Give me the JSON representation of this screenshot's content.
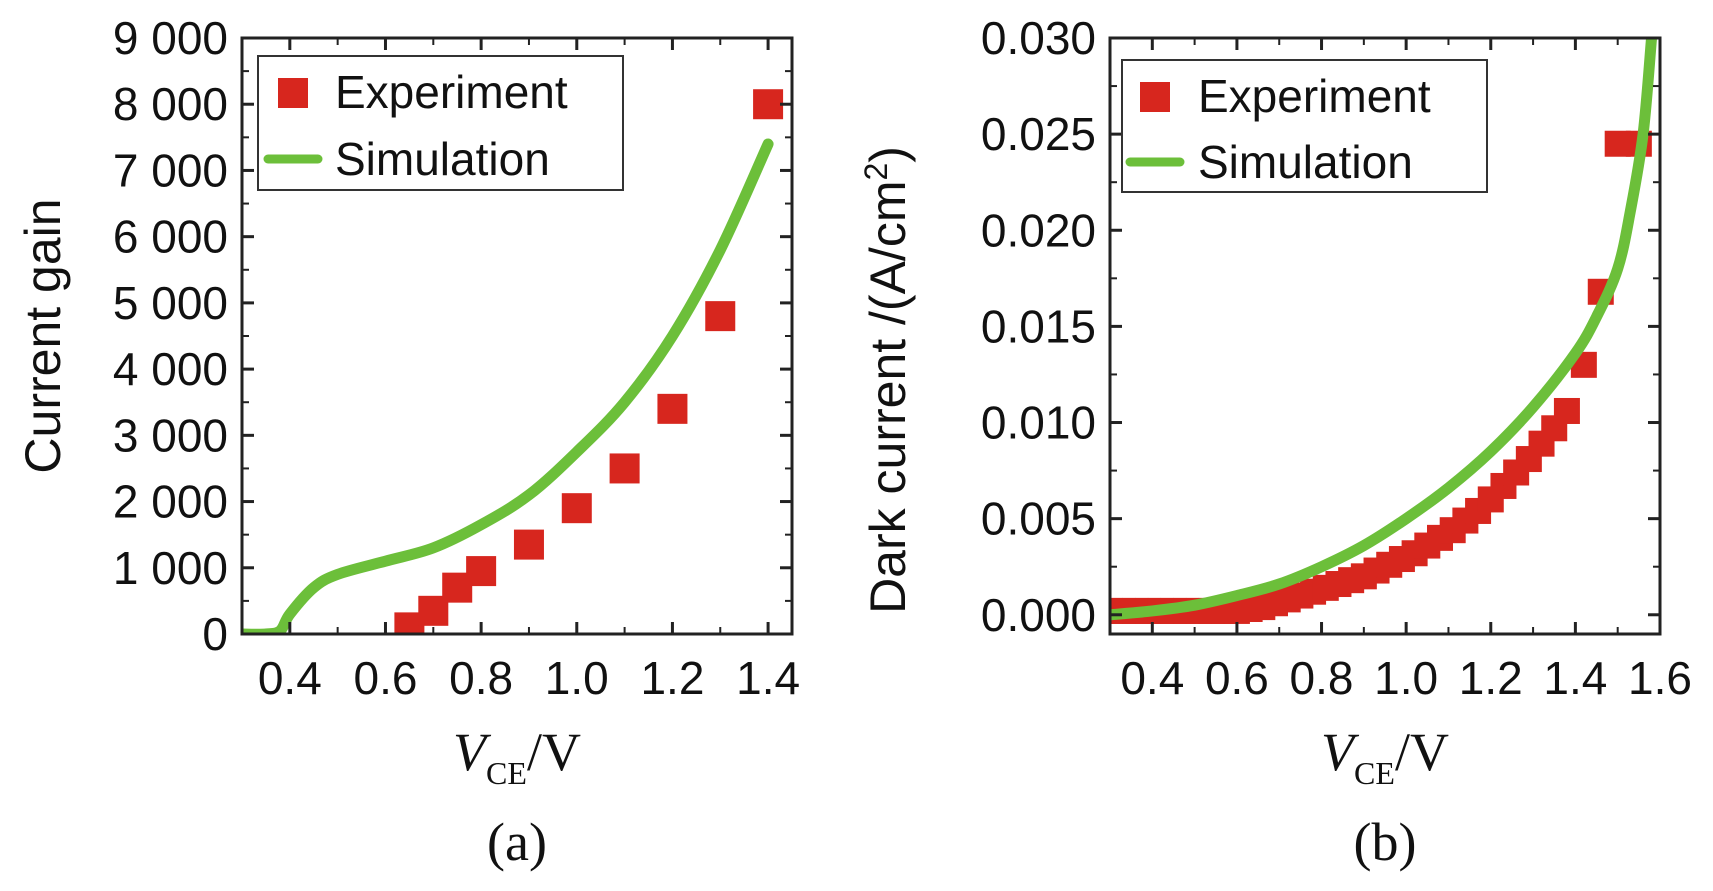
{
  "colors": {
    "experiment": "#d7261e",
    "simulation": "#6cbf3a",
    "axis": "#222222"
  },
  "chart_data": [
    {
      "type": "scatter",
      "panel_label": "(a)",
      "xlabel": {
        "main": "V",
        "sub": "CE",
        "unit": "/V"
      },
      "ylabel": "Current gain",
      "xlim": [
        0.3,
        1.45
      ],
      "ylim": [
        0,
        9000
      ],
      "xticks": [
        0.4,
        0.6,
        0.8,
        1.0,
        1.2,
        1.4
      ],
      "xtick_labels": [
        "0.4",
        "0.6",
        "0.8",
        "1.0",
        "1.2",
        "1.4"
      ],
      "yticks": [
        0,
        1000,
        2000,
        3000,
        4000,
        5000,
        6000,
        7000,
        8000,
        9000
      ],
      "ytick_labels": [
        "0",
        "1 000",
        "2 000",
        "3 000",
        "4 000",
        "5 000",
        "6 000",
        "7 000",
        "8 000",
        "9 000"
      ],
      "legend": {
        "position": "top-left",
        "entries": [
          "Experiment",
          "Simulation"
        ]
      },
      "series": [
        {
          "name": "Experiment",
          "kind": "markers",
          "x": [
            0.65,
            0.7,
            0.75,
            0.8,
            0.9,
            1.0,
            1.1,
            1.2,
            1.3,
            1.4
          ],
          "y": [
            100,
            350,
            700,
            950,
            1350,
            1900,
            2500,
            3400,
            4800,
            8000
          ]
        },
        {
          "name": "Simulation",
          "kind": "line",
          "x": [
            0.3,
            0.35,
            0.38,
            0.4,
            0.45,
            0.5,
            0.6,
            0.7,
            0.8,
            0.9,
            1.0,
            1.1,
            1.2,
            1.3,
            1.4
          ],
          "y": [
            0,
            0,
            50,
            300,
            700,
            900,
            1100,
            1300,
            1650,
            2100,
            2750,
            3500,
            4500,
            5800,
            7400
          ]
        }
      ]
    },
    {
      "type": "scatter",
      "panel_label": "(b)",
      "xlabel": {
        "main": "V",
        "sub": "CE",
        "unit": "/V"
      },
      "ylabel": {
        "text": "Dark current /(A/cm",
        "superscript": "2",
        "closing": ")"
      },
      "xlim": [
        0.3,
        1.6
      ],
      "ylim": [
        -0.001,
        0.03
      ],
      "xticks": [
        0.4,
        0.6,
        0.8,
        1.0,
        1.2,
        1.4,
        1.6
      ],
      "xtick_labels": [
        "0.4",
        "0.6",
        "0.8",
        "1.0",
        "1.2",
        "1.4",
        "1.6"
      ],
      "yticks": [
        0.0,
        0.005,
        0.01,
        0.015,
        0.02,
        0.025,
        0.03
      ],
      "ytick_labels": [
        "0.000",
        "0.005",
        "0.010",
        "0.015",
        "0.020",
        "0.025",
        "0.030"
      ],
      "legend": {
        "position": "top-left",
        "entries": [
          "Experiment",
          "Simulation"
        ]
      },
      "series": [
        {
          "name": "Experiment",
          "kind": "markers",
          "x": [
            0.3,
            0.33,
            0.36,
            0.39,
            0.42,
            0.45,
            0.48,
            0.51,
            0.54,
            0.57,
            0.6,
            0.63,
            0.66,
            0.69,
            0.72,
            0.75,
            0.78,
            0.81,
            0.84,
            0.87,
            0.9,
            0.93,
            0.96,
            0.99,
            1.02,
            1.05,
            1.08,
            1.11,
            1.14,
            1.17,
            1.2,
            1.23,
            1.26,
            1.29,
            1.32,
            1.35,
            1.38,
            1.42,
            1.46,
            1.5,
            1.55
          ],
          "y": [
            0.0002,
            0.0002,
            0.0002,
            0.0002,
            0.0002,
            0.0002,
            0.0002,
            0.0002,
            0.0002,
            0.0002,
            0.0002,
            0.0003,
            0.0004,
            0.0006,
            0.0008,
            0.001,
            0.0012,
            0.0014,
            0.0016,
            0.0018,
            0.002,
            0.0023,
            0.0026,
            0.0029,
            0.0032,
            0.0036,
            0.004,
            0.0044,
            0.0049,
            0.0054,
            0.006,
            0.0067,
            0.0074,
            0.0081,
            0.0089,
            0.0097,
            0.0106,
            0.013,
            0.0168,
            0.0245,
            0.0245
          ]
        },
        {
          "name": "Simulation",
          "kind": "line",
          "x": [
            0.3,
            0.4,
            0.5,
            0.6,
            0.7,
            0.8,
            0.9,
            1.0,
            1.1,
            1.2,
            1.3,
            1.4,
            1.45,
            1.5,
            1.53,
            1.56,
            1.58
          ],
          "y": [
            0.0,
            0.0002,
            0.0005,
            0.001,
            0.0016,
            0.0025,
            0.0036,
            0.005,
            0.0066,
            0.0085,
            0.0108,
            0.0136,
            0.0155,
            0.018,
            0.021,
            0.025,
            0.03
          ]
        }
      ]
    }
  ]
}
